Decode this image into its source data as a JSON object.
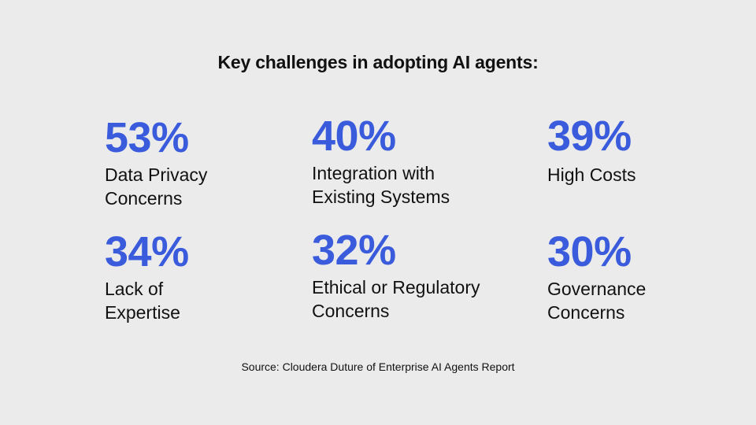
{
  "chart_data": {
    "type": "table",
    "title": "Key challenges in adopting AI agents:",
    "source": "Source: Cloudera Duture of Enterprise AI Agents Report",
    "accent_color": "#3a5bdc",
    "stats": [
      {
        "value": "53%",
        "label_lines": [
          "Data Privacy",
          "Concerns"
        ]
      },
      {
        "value": "40%",
        "label_lines": [
          "Integration with",
          "Existing Systems"
        ]
      },
      {
        "value": "39%",
        "label_lines": [
          "High Costs"
        ]
      },
      {
        "value": "34%",
        "label_lines": [
          "Lack of",
          "Expertise"
        ]
      },
      {
        "value": "32%",
        "label_lines": [
          "Ethical or Regulatory",
          "Concerns"
        ]
      },
      {
        "value": "30%",
        "label_lines": [
          "Governance",
          "Concerns"
        ]
      }
    ]
  }
}
